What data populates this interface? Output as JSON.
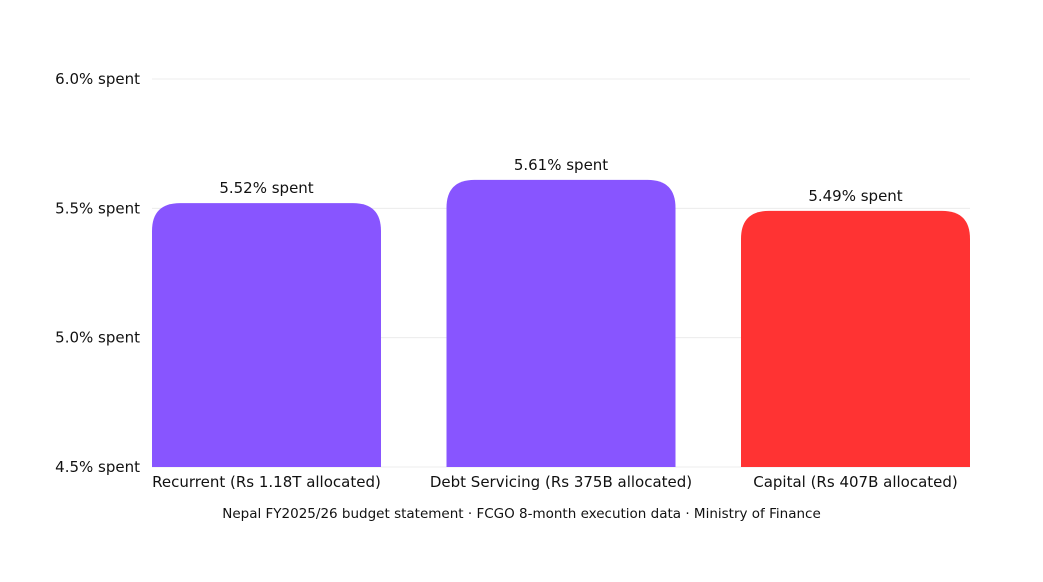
{
  "chart_data": {
    "type": "bar",
    "categories": [
      "Recurrent (Rs 1.18T allocated)",
      "Debt Servicing (Rs 375B allocated)",
      "Capital (Rs 407B allocated)"
    ],
    "values": [
      5.52,
      5.61,
      5.49
    ],
    "data_labels": [
      "5.52% spent",
      "5.61% spent",
      "5.49% spent"
    ],
    "colors": [
      "#8855ff",
      "#8855ff",
      "#ff3333"
    ],
    "ylim": [
      4.5,
      6.0
    ],
    "yticks": [
      {
        "value": 4.5,
        "label": "4.5% spent"
      },
      {
        "value": 5.0,
        "label": "5.0% spent"
      },
      {
        "value": 5.5,
        "label": "5.5% spent"
      },
      {
        "value": 6.0,
        "label": "6.0% spent"
      }
    ],
    "grid": true,
    "legend": "none",
    "title": "",
    "xlabel": "",
    "ylabel": ""
  },
  "caption": "Nepal FY2025/26 budget statement · FCGO 8-month execution data · Ministry of Finance"
}
